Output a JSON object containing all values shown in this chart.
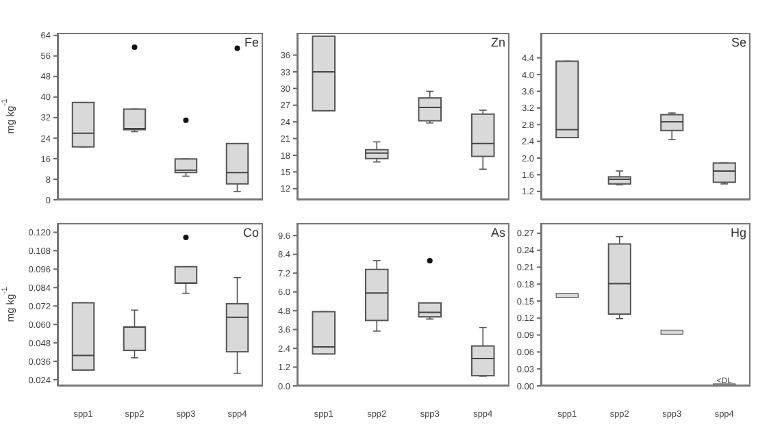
{
  "chart_data": [
    {
      "type": "box",
      "title": "Fe",
      "ylabel": "mg kg$^{-1}$",
      "categories": [
        "spp1",
        "spp2",
        "spp3",
        "spp4"
      ],
      "color": "#d9d9d9",
      "ylim": [
        0,
        65
      ],
      "yticks": [
        0,
        8,
        16,
        24,
        32,
        40,
        48,
        56,
        64
      ],
      "tick_labels": "y",
      "boxes": [
        {
          "low": 20.6,
          "q1": 20.6,
          "median": 25.9,
          "q3": 37.9,
          "high": 37.9
        },
        {
          "low": 26.5,
          "q1": 27.3,
          "median": 27.7,
          "q3": 35.3,
          "high": 35.3,
          "outliers": [
            59.4
          ]
        },
        {
          "low": 9.2,
          "q1": 10.6,
          "median": 11.5,
          "q3": 15.9,
          "high": 15.9,
          "outliers": [
            31
          ]
        },
        {
          "low": 3.2,
          "q1": 6.2,
          "median": 10.6,
          "q3": 21.9,
          "high": 21.9,
          "outliers": [
            59
          ]
        }
      ]
    },
    {
      "type": "box",
      "title": "Zn",
      "categories": [
        "spp1",
        "spp2",
        "spp3",
        "spp4"
      ],
      "color": "#d9d9d9",
      "ylim": [
        10,
        40
      ],
      "yticks": [
        12,
        15,
        18,
        21,
        24,
        27,
        30,
        33,
        36
      ],
      "tick_labels": "y",
      "boxes": [
        {
          "low": 26,
          "q1": 26,
          "median": 33,
          "q3": 39.4,
          "high": 39.4
        },
        {
          "low": 16.8,
          "q1": 17.4,
          "median": 18.4,
          "q3": 19,
          "high": 20.4
        },
        {
          "low": 23.8,
          "q1": 24.2,
          "median": 26.6,
          "q3": 28.3,
          "high": 29.5
        },
        {
          "low": 15.5,
          "q1": 17.8,
          "median": 20.1,
          "q3": 25.4,
          "high": 26.1
        }
      ]
    },
    {
      "type": "box",
      "title": "Se",
      "categories": [
        "spp1",
        "spp2",
        "spp3",
        "spp4"
      ],
      "color": "#d9d9d9",
      "ylim": [
        1,
        5
      ],
      "yticks": [
        {
          "value": 1.2,
          "label": "1.2"
        },
        {
          "value": 1.6,
          "label": "1.6"
        },
        {
          "value": 2,
          "label": "2.0"
        },
        {
          "value": 2.4,
          "label": "2.4"
        },
        {
          "value": 2.8,
          "label": "2.8"
        },
        {
          "value": 3.2,
          "label": "3.2"
        },
        {
          "value": 3.6,
          "label": "3.6"
        },
        {
          "value": 4,
          "label": "4.0"
        },
        {
          "value": 4.4,
          "label": "4.4"
        }
      ],
      "tick_labels": "y",
      "boxes": [
        {
          "low": 2.49,
          "q1": 2.49,
          "median": 2.68,
          "q3": 4.32,
          "high": 4.32
        },
        {
          "low": 1.36,
          "q1": 1.38,
          "median": 1.49,
          "q3": 1.55,
          "high": 1.69
        },
        {
          "low": 2.44,
          "q1": 2.66,
          "median": 2.87,
          "q3": 3.04,
          "high": 3.08
        },
        {
          "low": 1.38,
          "q1": 1.42,
          "median": 1.69,
          "q3": 1.88,
          "high": 1.88
        }
      ]
    },
    {
      "type": "box",
      "title": "Co",
      "ylabel": "mg kg$^{-1}$",
      "categories": [
        "spp1",
        "spp2",
        "spp3",
        "spp4"
      ],
      "color": "#d9d9d9",
      "ylim": [
        0.02,
        0.126
      ],
      "yticks": [
        {
          "value": 0.024,
          "label": "0.024"
        },
        {
          "value": 0.036,
          "label": "0.036"
        },
        {
          "value": 0.048,
          "label": "0.048"
        },
        {
          "value": 0.06,
          "label": "0.060"
        },
        {
          "value": 0.072,
          "label": "0.072"
        },
        {
          "value": 0.084,
          "label": "0.084"
        },
        {
          "value": 0.096,
          "label": "0.096"
        },
        {
          "value": 0.108,
          "label": "0.108"
        },
        {
          "value": 0.12,
          "label": "0.120"
        }
      ],
      "boxes": [
        {
          "low": 0.0303,
          "q1": 0.0303,
          "median": 0.0398,
          "q3": 0.0741,
          "high": 0.0741
        },
        {
          "low": 0.0383,
          "q1": 0.0431,
          "median": 0.0583,
          "q3": 0.0583,
          "high": 0.0693
        },
        {
          "low": 0.0803,
          "q1": 0.0869,
          "median": 0.0869,
          "q3": 0.0976,
          "high": 0.0976,
          "outliers": [
            0.1167
          ]
        },
        {
          "low": 0.0282,
          "q1": 0.0422,
          "median": 0.0646,
          "q3": 0.0735,
          "high": 0.0905
        }
      ]
    },
    {
      "type": "box",
      "title": "As",
      "categories": [
        "spp1",
        "spp2",
        "spp3",
        "spp4"
      ],
      "color": "#d9d9d9",
      "ylim": [
        0,
        10.4
      ],
      "yticks": [
        {
          "value": 0,
          "label": "0.0"
        },
        {
          "value": 1.2,
          "label": "1.2"
        },
        {
          "value": 2.4,
          "label": "2.4"
        },
        {
          "value": 3.6,
          "label": "3.6"
        },
        {
          "value": 4.8,
          "label": "4.8"
        },
        {
          "value": 6,
          "label": "6.0"
        },
        {
          "value": 7.2,
          "label": "7.2"
        },
        {
          "value": 8.4,
          "label": "8.4"
        },
        {
          "value": 9.6,
          "label": "9.6"
        }
      ],
      "boxes": [
        {
          "low": 2.04,
          "q1": 2.04,
          "median": 2.49,
          "q3": 4.74,
          "high": 4.74
        },
        {
          "low": 3.5,
          "q1": 4.18,
          "median": 5.93,
          "q3": 7.44,
          "high": 8
        },
        {
          "low": 4.27,
          "q1": 4.41,
          "median": 4.7,
          "q3": 5.3,
          "high": 5.3,
          "outliers": [
            8
          ]
        },
        {
          "low": 0.62,
          "q1": 0.65,
          "median": 1.75,
          "q3": 2.55,
          "high": 3.73
        }
      ]
    },
    {
      "type": "box",
      "title": "Hg",
      "categories": [
        "spp1",
        "spp2",
        "spp3",
        "spp4"
      ],
      "color": "#d9d9d9",
      "ylim": [
        0,
        0.288
      ],
      "yticks": [
        {
          "value": 0,
          "label": "0.00"
        },
        {
          "value": 0.03,
          "label": "0.03"
        },
        {
          "value": 0.06,
          "label": "0.06"
        },
        {
          "value": 0.09,
          "label": "0.09"
        },
        {
          "value": 0.12,
          "label": "0.12"
        },
        {
          "value": 0.15,
          "label": "0.15"
        },
        {
          "value": 0.18,
          "label": "0.18"
        },
        {
          "value": 0.21,
          "label": "0.21"
        },
        {
          "value": 0.24,
          "label": "0.24"
        },
        {
          "value": 0.27,
          "label": "0.27"
        }
      ],
      "annotations": [
        {
          "text": "<DL",
          "x": "spp4",
          "y": 0
        }
      ],
      "boxes": [
        {
          "low": 0.16,
          "q1": 0.16,
          "median": 0.16,
          "q3": 0.16,
          "high": 0.16
        },
        {
          "low": 0.119,
          "q1": 0.127,
          "median": 0.181,
          "q3": 0.251,
          "high": 0.264
        },
        {
          "low": 0.095,
          "q1": 0.095,
          "median": 0.095,
          "q3": 0.095,
          "high": 0.095
        },
        {
          "low": 0,
          "q1": 0,
          "median": 0,
          "q3": 0,
          "high": 0
        }
      ]
    }
  ]
}
